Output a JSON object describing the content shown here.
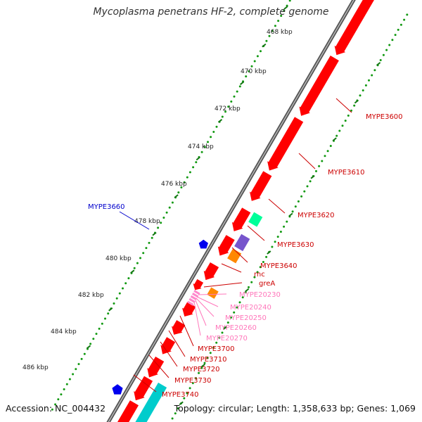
{
  "title": "Mycoplasma penetrans HF-2, complete genome",
  "accession_text": "Accession: NC_004432",
  "topology_text": "Topology: circular; Length: 1,358,633 bp; Genes: 1,069",
  "tick_labels": [
    "468 kbp",
    "470 kbp",
    "472 kbp",
    "474 kbp",
    "476 kbp",
    "478 kbp",
    "480 kbp",
    "482 kbp",
    "484 kbp",
    "486 kbp"
  ],
  "colors": {
    "cds": "#ff0000",
    "rrna_highlight": "#00ff99",
    "purple": "#7755cc",
    "orange": "#ff8800",
    "pink": "#ff88cc",
    "cyan": "#00cccc",
    "blue": "#0000ee",
    "backbone": "#808080",
    "tick_dots": "#119911",
    "label_red": "#cc0000",
    "label_pink": "#ff77bb",
    "label_blue": "#0000cc"
  },
  "labels": [
    {
      "name": "MYPE3600",
      "color": "red"
    },
    {
      "name": "MYPE3610",
      "color": "red"
    },
    {
      "name": "MYPE3620",
      "color": "red"
    },
    {
      "name": "MYPE3630",
      "color": "red"
    },
    {
      "name": "MYPE3640",
      "color": "red"
    },
    {
      "name": "rnc",
      "color": "red"
    },
    {
      "name": "greA",
      "color": "red"
    },
    {
      "name": "MYPE20230",
      "color": "pink"
    },
    {
      "name": "MYPE20240",
      "color": "pink"
    },
    {
      "name": "MYPE20250",
      "color": "pink"
    },
    {
      "name": "MYPE20260",
      "color": "pink"
    },
    {
      "name": "MYPE20270",
      "color": "pink"
    },
    {
      "name": "MYPE3700",
      "color": "red"
    },
    {
      "name": "MYPE3710",
      "color": "red"
    },
    {
      "name": "MYPE3720",
      "color": "red"
    },
    {
      "name": "MYPE3730",
      "color": "red"
    },
    {
      "name": "MYPE3740",
      "color": "red"
    },
    {
      "name": "MYPE3660",
      "color": "blue"
    }
  ]
}
